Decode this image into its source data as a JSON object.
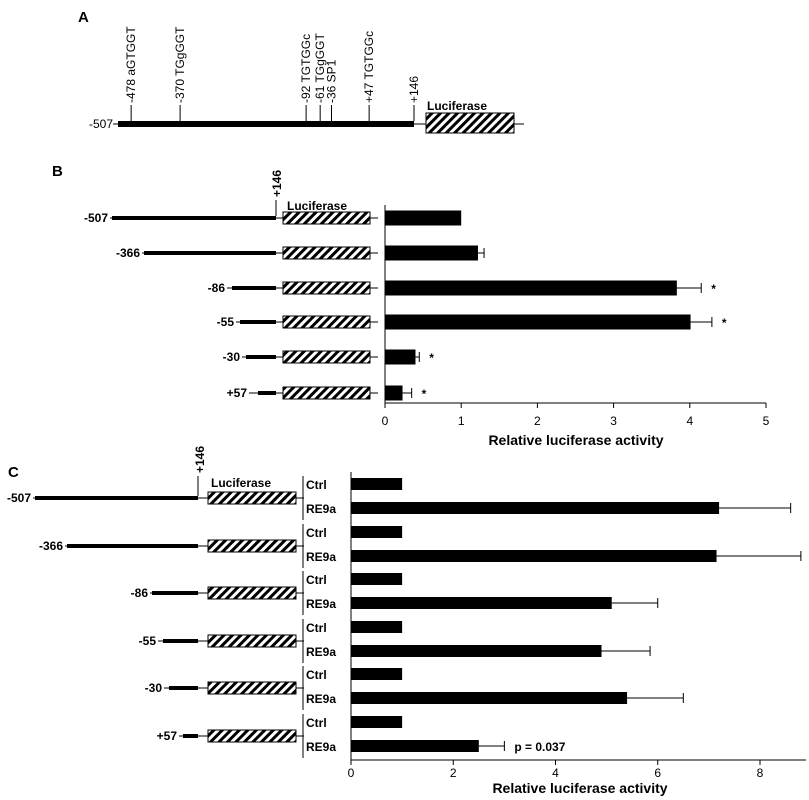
{
  "panel_a": {
    "letter": "A",
    "start_label": "-507",
    "end_label": "+146",
    "gene_label": "Luciferase",
    "sites": [
      {
        "position": -478,
        "label": "-478  aGTGGT"
      },
      {
        "position": -370,
        "label": "-370  TGgGGT"
      },
      {
        "position": -92,
        "label": "-92  TGTGGc"
      },
      {
        "position": -61,
        "label": "-61  TGgGGT"
      },
      {
        "position": -36,
        "label": "-36  SP1"
      },
      {
        "position": 47,
        "label": "+47  TGTGGc"
      }
    ]
  },
  "panel_b": {
    "letter": "B",
    "top_label": "+146",
    "gene_label": "Luciferase",
    "chart_data": {
      "type": "bar",
      "orientation": "horizontal",
      "categories": [
        "-507",
        "-366",
        "-86",
        "-55",
        "-30",
        "+57"
      ],
      "values": [
        1.0,
        1.22,
        3.83,
        4.01,
        0.4,
        0.23
      ],
      "errors": [
        0.0,
        0.08,
        0.32,
        0.28,
        0.05,
        0.12
      ],
      "significance": [
        "",
        "",
        "*",
        "*",
        "*",
        "*"
      ],
      "xlabel": "Relative luciferase activity",
      "xlim": [
        0,
        5
      ],
      "xticks": [
        0,
        1,
        2,
        3,
        4,
        5
      ]
    }
  },
  "panel_c": {
    "letter": "C",
    "top_label": "+146",
    "gene_label": "Luciferase",
    "chart_data": {
      "type": "bar",
      "orientation": "horizontal",
      "categories": [
        "-507",
        "-366",
        "-86",
        "-55",
        "-30",
        "+57"
      ],
      "series": [
        {
          "name": "Ctrl",
          "values": [
            1,
            1,
            1,
            1,
            1,
            1
          ],
          "errors": [
            0,
            0,
            0,
            0,
            0,
            0
          ]
        },
        {
          "name": "RE9a",
          "values": [
            7.2,
            7.15,
            5.1,
            4.9,
            5.4,
            2.5
          ],
          "errors": [
            1.4,
            1.65,
            0.9,
            0.95,
            1.1,
            0.5
          ]
        }
      ],
      "annotation": "p = 0.037",
      "xlabel": "Relative luciferase activity",
      "xlim": [
        0,
        8.9
      ],
      "xticks": [
        0,
        2,
        4,
        6,
        8
      ]
    }
  }
}
